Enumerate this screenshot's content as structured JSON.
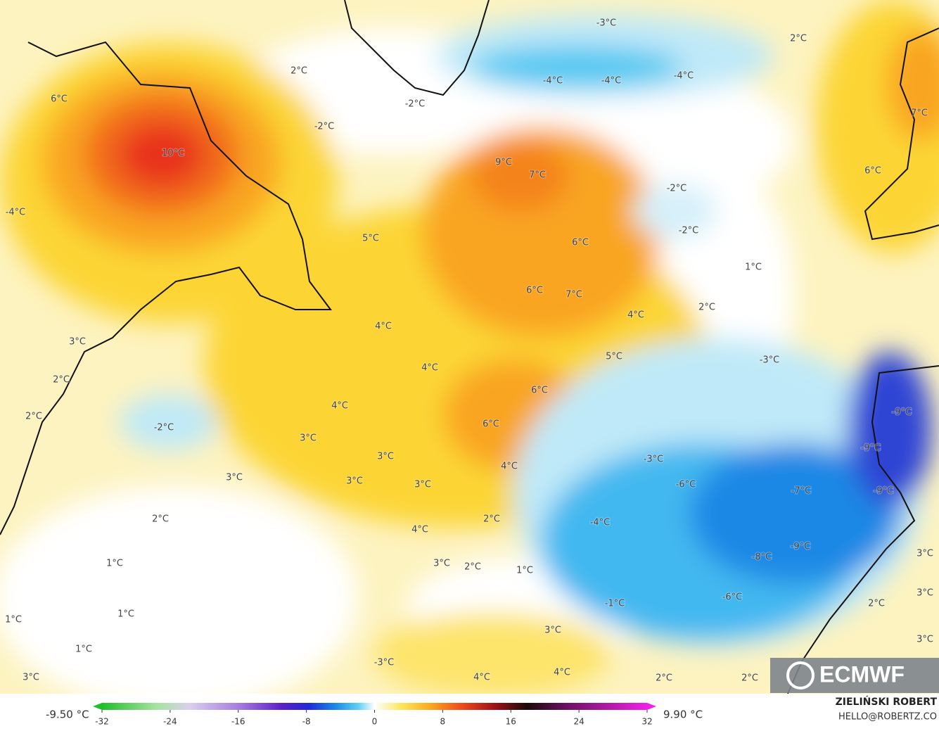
{
  "map": {
    "labels": [
      "2°C",
      "-3°C",
      "2°C",
      "-4°C",
      "-4°C",
      "-4°C",
      "-2°C",
      "-2°C",
      "6°C",
      "7°C",
      "10°C",
      "9°C",
      "7°C",
      "6°C",
      "-2°C",
      "-2°C",
      "-4°C",
      "5°C",
      "6°C",
      "1°C",
      "6°C",
      "7°C",
      "2°C",
      "4°C",
      "4°C",
      "3°C",
      "5°C",
      "-3°C",
      "4°C",
      "2°C",
      "6°C",
      "4°C",
      "2°C",
      "-9°C",
      "6°C",
      "-2°C",
      "3°C",
      "-9°C",
      "3°C",
      "-3°C",
      "4°C",
      "3°C",
      "3°C",
      "3°C",
      "-6°C",
      "-7°C",
      "-9°C",
      "2°C",
      "2°C",
      "-4°C",
      "4°C",
      "-9°C",
      "-8°C",
      "1°C",
      "3°C",
      "2°C",
      "1°C",
      "3°C",
      "-6°C",
      "-1°C",
      "2°C",
      "3°C",
      "1°C",
      "1°C",
      "3°C",
      "3°C",
      "1°C",
      "-3°C",
      "3°C",
      "4°C",
      "4°C",
      "2°C",
      "2°C"
    ],
    "logo": "ECMWF"
  },
  "colorbar": {
    "min_label": "-9.50 °C",
    "max_label": "9.90 °C",
    "range": [
      -32,
      32
    ],
    "ticks": [
      -32,
      -24,
      -16,
      -8,
      0,
      8,
      16,
      24,
      32
    ]
  },
  "credit": {
    "author": "ZIELIŃSKI ROBERT",
    "contact": "HELLO@ROBERTZ.CO"
  }
}
